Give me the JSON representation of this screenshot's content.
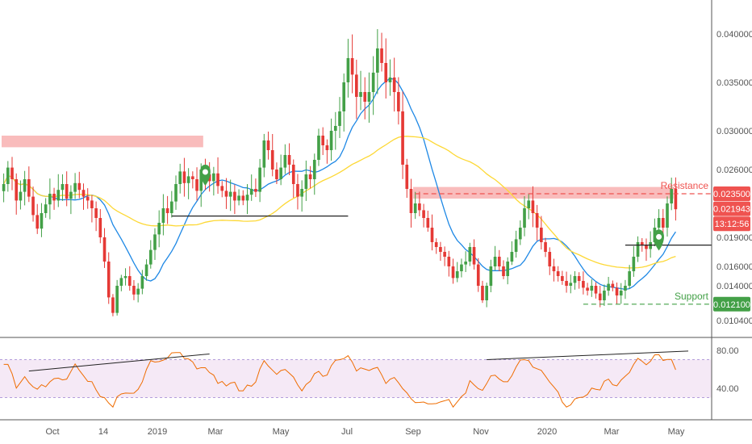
{
  "chart_data": {
    "type": "candlestick",
    "price_axis": {
      "ticks": [
        "0.040000",
        "0.035000",
        "0.030000",
        "0.026000",
        "0.023500",
        "0.021943",
        "0.019000",
        "0.016000",
        "0.014000",
        "0.012100",
        "0.010400"
      ],
      "tick_values": [
        0.04,
        0.035,
        0.03,
        0.026,
        0.0235,
        0.021943,
        0.019,
        0.016,
        0.014,
        0.0121,
        0.0104
      ],
      "ylim": [
        0.0095,
        0.043
      ]
    },
    "rsi_axis": {
      "ticks": [
        "80.00",
        "40.00"
      ],
      "band": [
        30,
        70
      ],
      "ylim": [
        10,
        90
      ]
    },
    "time_labels": [
      "Oct",
      "14",
      "2019",
      "Mar",
      "May",
      "Jul",
      "Sep",
      "Nov",
      "2020",
      "Mar",
      "May"
    ],
    "price_tags": [
      {
        "text": "0.023500",
        "value": 0.0235,
        "color": "#ef5350"
      },
      {
        "text": "0.021943",
        "value": 0.021943,
        "color": "#ef5350"
      },
      {
        "text": "13:12:56",
        "value": 0.0204,
        "color": "#ef5350"
      },
      {
        "text": "0.012100",
        "value": 0.0121,
        "color": "#43a047"
      }
    ],
    "annotations": [
      {
        "text": "Resistance",
        "color": "#ef5350",
        "level": 0.0235
      },
      {
        "text": "Support",
        "color": "#43a047",
        "level": 0.0121
      }
    ],
    "resistance_zones": [
      {
        "from_bar": 0,
        "to_bar": 48,
        "low": 0.0283,
        "high": 0.0295
      },
      {
        "from_bar": 98,
        "to_bar": 160,
        "low": 0.023,
        "high": 0.0242
      }
    ],
    "horizontal_lines": [
      {
        "from_bar": 40,
        "to_bar": 82,
        "value": 0.0212,
        "color": "#222",
        "dashed": false
      },
      {
        "from_bar": 148,
        "to_bar": 180,
        "value": 0.0182,
        "color": "#222",
        "dashed": false
      },
      {
        "from_bar": 98,
        "to_bar": 186,
        "value": 0.0235,
        "color": "#ef5350",
        "dashed": true
      },
      {
        "from_bar": 138,
        "to_bar": 186,
        "value": 0.0121,
        "color": "#43a047",
        "dashed": true
      }
    ],
    "trendlines_rsi": [
      {
        "from_bar": 6,
        "to_bar": 49,
        "from": 58,
        "to": 76
      },
      {
        "from_bar": 115,
        "to_bar": 163,
        "from": 70,
        "to": 79
      }
    ],
    "markers": [
      {
        "bar": 48,
        "value": 0.0255,
        "color": "#43a047"
      },
      {
        "bar": 156,
        "value": 0.0188,
        "color": "#43a047"
      }
    ],
    "candles_close": [
      0.0245,
      0.0262,
      0.025,
      0.0228,
      0.0237,
      0.025,
      0.0232,
      0.0213,
      0.0199,
      0.0215,
      0.0224,
      0.0235,
      0.0228,
      0.0239,
      0.0245,
      0.023,
      0.0237,
      0.0246,
      0.0239,
      0.0232,
      0.0228,
      0.022,
      0.021,
      0.019,
      0.0165,
      0.0128,
      0.0112,
      0.014,
      0.0148,
      0.015,
      0.014,
      0.0131,
      0.0137,
      0.015,
      0.0162,
      0.0177,
      0.0193,
      0.0205,
      0.022,
      0.0215,
      0.0227,
      0.0245,
      0.0258,
      0.0246,
      0.0253,
      0.025,
      0.0238,
      0.026,
      0.0255,
      0.0248,
      0.0256,
      0.0243,
      0.0238,
      0.0232,
      0.0237,
      0.0228,
      0.0233,
      0.0228,
      0.0234,
      0.024,
      0.0237,
      0.0262,
      0.029,
      0.028,
      0.026,
      0.025,
      0.0262,
      0.0275,
      0.0265,
      0.0245,
      0.0232,
      0.024,
      0.0255,
      0.025,
      0.027,
      0.0295,
      0.0285,
      0.028,
      0.03,
      0.0305,
      0.032,
      0.035,
      0.0375,
      0.0358,
      0.0335,
      0.034,
      0.033,
      0.034,
      0.036,
      0.0385,
      0.037,
      0.035,
      0.0355,
      0.034,
      0.032,
      0.0265,
      0.024,
      0.0215,
      0.0225,
      0.0218,
      0.021,
      0.02,
      0.0185,
      0.018,
      0.0175,
      0.017,
      0.016,
      0.0148,
      0.0155,
      0.0162,
      0.0165,
      0.018,
      0.0162,
      0.014,
      0.0125,
      0.014,
      0.016,
      0.017,
      0.016,
      0.015,
      0.0165,
      0.0175,
      0.0188,
      0.02,
      0.022,
      0.0228,
      0.0215,
      0.02,
      0.0185,
      0.0175,
      0.016,
      0.0155,
      0.015,
      0.0145,
      0.014,
      0.0143,
      0.015,
      0.0145,
      0.0138,
      0.0135,
      0.014,
      0.0132,
      0.0125,
      0.0135,
      0.0142,
      0.0138,
      0.013,
      0.0135,
      0.014,
      0.0155,
      0.017,
      0.0185,
      0.0182,
      0.0178,
      0.0185,
      0.02,
      0.021,
      0.02,
      0.0225,
      0.024,
      0.0219
    ]
  }
}
